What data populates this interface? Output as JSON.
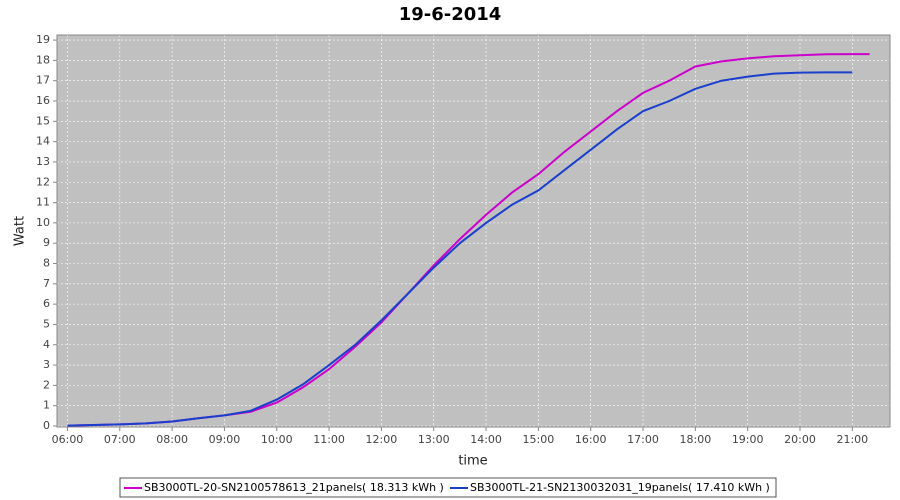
{
  "chart_data": {
    "type": "line",
    "title": "19-6-2014",
    "x_label": "time",
    "y_label": "Watt",
    "x": [
      6,
      6.5,
      7,
      7.5,
      8,
      8.5,
      9,
      9.5,
      10,
      10.5,
      11,
      11.5,
      12,
      12.5,
      13,
      13.5,
      14,
      14.5,
      15,
      15.5,
      16,
      16.5,
      17,
      17.5,
      18,
      18.5,
      19,
      19.5,
      20,
      20.5,
      21,
      21.33
    ],
    "series": [
      {
        "name": "SB3000TL-20-SN2100578613_21panels( 18.313 kWh )",
        "color": "#cc00cc",
        "values": [
          0.02,
          0.05,
          0.08,
          0.13,
          0.22,
          0.38,
          0.52,
          0.7,
          1.15,
          1.9,
          2.8,
          3.9,
          5.1,
          6.5,
          7.9,
          9.2,
          10.4,
          11.5,
          12.4,
          13.5,
          14.5,
          15.5,
          16.4,
          17.0,
          17.7,
          17.95,
          18.1,
          18.2,
          18.25,
          18.3,
          18.31,
          18.31
        ]
      },
      {
        "name": "SB3000TL-21-SN2130032031_19panels( 17.410 kWh )",
        "color": "#1a3fcc",
        "values": [
          0.02,
          0.05,
          0.08,
          0.13,
          0.22,
          0.38,
          0.52,
          0.75,
          1.3,
          2.05,
          3.0,
          4.0,
          5.2,
          6.5,
          7.8,
          9.0,
          10.0,
          10.9,
          11.6,
          12.6,
          13.6,
          14.6,
          15.5,
          16.0,
          16.6,
          17.0,
          17.2,
          17.35,
          17.4,
          17.41,
          17.41,
          null
        ]
      }
    ],
    "xlim": [
      5.8,
      21.72
    ],
    "xticks": [
      {
        "value": 6,
        "label": "06:00"
      },
      {
        "value": 7,
        "label": "07:00"
      },
      {
        "value": 8,
        "label": "08:00"
      },
      {
        "value": 9,
        "label": "09:00"
      },
      {
        "value": 10,
        "label": "10:00"
      },
      {
        "value": 11,
        "label": "11:00"
      },
      {
        "value": 12,
        "label": "12:00"
      },
      {
        "value": 13,
        "label": "13:00"
      },
      {
        "value": 14,
        "label": "14:00"
      },
      {
        "value": 15,
        "label": "15:00"
      },
      {
        "value": 16,
        "label": "16:00"
      },
      {
        "value": 17,
        "label": "17:00"
      },
      {
        "value": 18,
        "label": "18:00"
      },
      {
        "value": 19,
        "label": "19:00"
      },
      {
        "value": 20,
        "label": "20:00"
      },
      {
        "value": 21,
        "label": "21:00"
      }
    ],
    "ylim": [
      0,
      19.25
    ],
    "yticks": [
      0,
      1,
      2,
      3,
      4,
      5,
      6,
      7,
      8,
      9,
      10,
      11,
      12,
      13,
      14,
      15,
      16,
      17,
      18,
      19
    ],
    "grid": true,
    "legend_position": "bottom"
  }
}
